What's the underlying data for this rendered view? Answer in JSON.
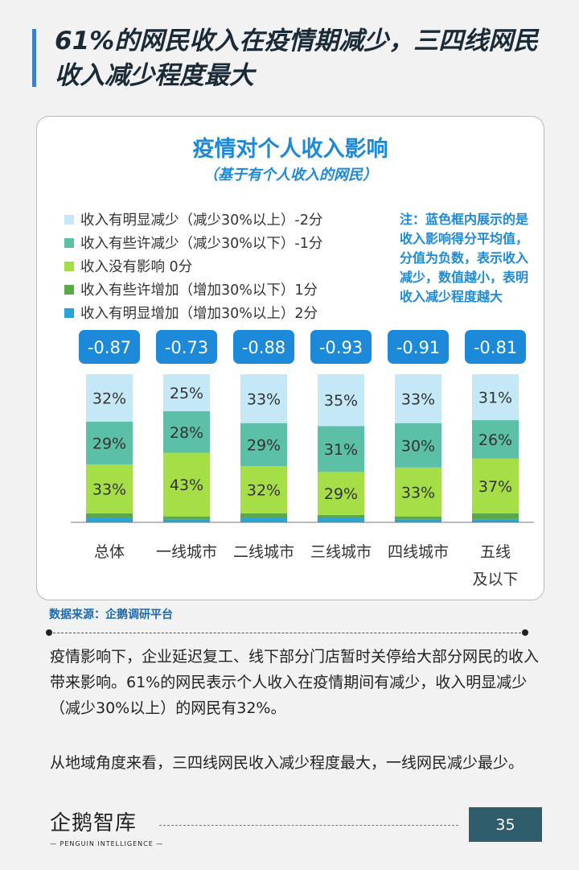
{
  "page": {
    "title": "61%的网民收入在疫情期减少，三四线网民收入减少程度最大",
    "source": "数据来源：企鹅调研平台",
    "paragraphs": [
      "疫情影响下，企业延迟复工、线下部分门店暂时关停给大部分网民的收入带来影响。61%的网民表示个人收入在疫情期间有减少，收入明显减少（减少30%以上）的网民有32%。",
      "从地域角度来看，三四线网民收入减少程度最大，一线网民减少最少。"
    ],
    "logo_text": "企鹅智库",
    "logo_sub": "— PENGUIN INTELLIGENCE —",
    "page_number": "35"
  },
  "chart_data": {
    "type": "bar",
    "stacked": true,
    "title": "疫情对个人收入影响",
    "subtitle": "（基于有个人收入的网民）",
    "note": "注：蓝色框内展示的是收入影响得分平均值，分值为负数，表示收入减少，数值越小，表明收入减少程度越大",
    "categories": [
      "总体",
      "一线城市",
      "二线城市",
      "三线城市",
      "四线城市",
      "五线及以下"
    ],
    "scores": [
      "-0.87",
      "-0.73",
      "-0.88",
      "-0.93",
      "-0.91",
      "-0.81"
    ],
    "legend_position": "top-left",
    "ylim": [
      0,
      100
    ],
    "series": [
      {
        "name": "收入有明显减少（减少30%以上）-2分",
        "color": "#c5e8f7",
        "values": [
          32,
          25,
          33,
          35,
          33,
          31
        ],
        "labels": [
          "32%",
          "25%",
          "33%",
          "35%",
          "33%",
          "31%"
        ]
      },
      {
        "name": "收入有些许减少（减少30%以下）-1分",
        "color": "#5cc0a6",
        "values": [
          29,
          28,
          29,
          31,
          30,
          26
        ],
        "labels": [
          "29%",
          "28%",
          "29%",
          "31%",
          "30%",
          "26%"
        ]
      },
      {
        "name": "收入没有影响 0分",
        "color": "#a6de48",
        "values": [
          33,
          43,
          32,
          29,
          33,
          37
        ],
        "labels": [
          "33%",
          "43%",
          "32%",
          "29%",
          "33%",
          "37%"
        ]
      },
      {
        "name": "收入有些许增加（增加30%以下）1分",
        "color": "#5aa84a",
        "values": [
          3,
          2,
          3,
          2,
          2,
          4
        ],
        "labels": []
      },
      {
        "name": "收入有明显增加（增加30%以上）2分",
        "color": "#29a3d8",
        "values": [
          3,
          2,
          3,
          3,
          2,
          2
        ],
        "labels": []
      }
    ]
  }
}
